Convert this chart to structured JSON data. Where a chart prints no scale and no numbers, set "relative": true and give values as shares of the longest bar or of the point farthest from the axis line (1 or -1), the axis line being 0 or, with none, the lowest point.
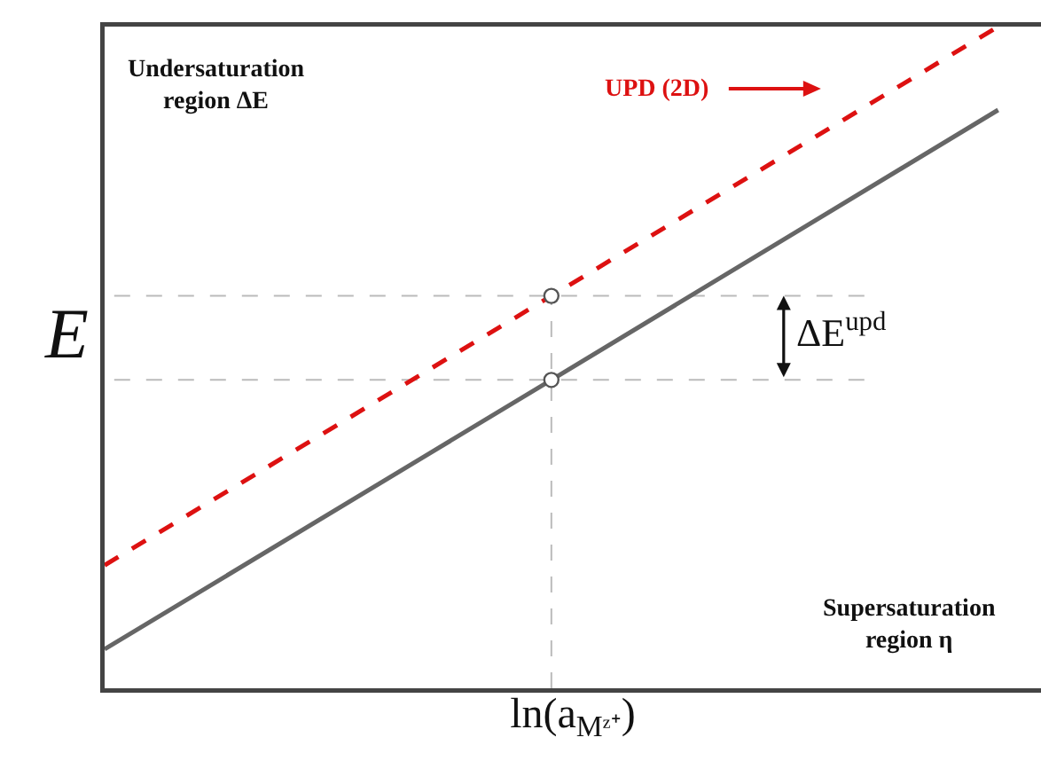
{
  "chart_data": {
    "type": "line",
    "relative": true,
    "categories": [
      null,
      null,
      null
    ],
    "xlabel": "ln(a$_{Mᶻ⁺}$)",
    "ylabel": "E",
    "series": [
      {
        "color": "#666666",
        "line_style": "solid",
        "values": [
          0.059,
          0.466,
          0.874
        ]
      },
      {
        "name": "UPD (2D)",
        "color": "#dd1111",
        "line_style": "dashed",
        "values": [
          0.186,
          0.593,
          1
        ]
      }
    ],
    "marker": "none",
    "ref_lines": [
      {
        "axis": "y",
        "value": 0.593,
        "color": "#bbbbbb",
        "line_style": "dashed"
      },
      {
        "axis": "y",
        "value": 0.466,
        "color": "#bbbbbb",
        "line_style": "dashed"
      }
    ],
    "annotations": [
      "Undersaturation\nregion ΔE",
      "ΔE$^{upd}$",
      "Supersaturation\nregion η"
    ],
    "grid": false,
    "legend": "top",
    "tick_labels": false
  }
}
